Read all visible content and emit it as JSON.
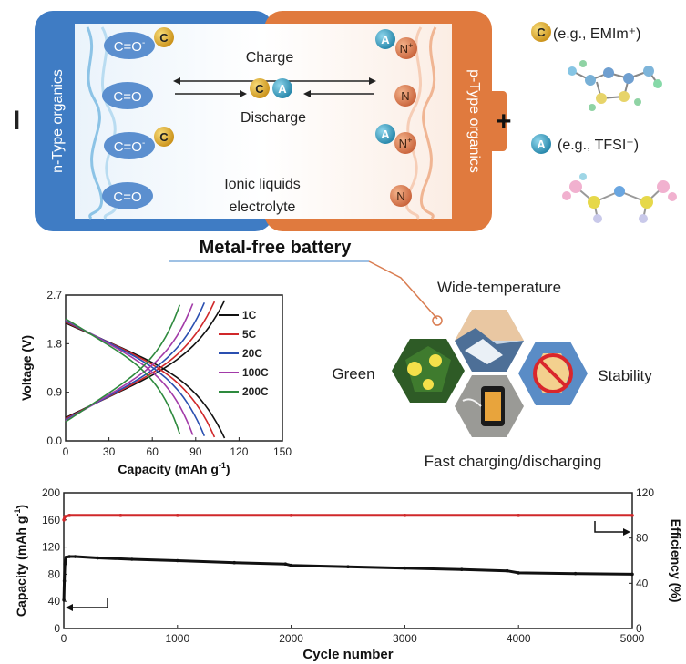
{
  "battery": {
    "minus_label": "I",
    "plus_label": "+",
    "anode_label": "n-Type organics",
    "cathode_label": "p-Type organics",
    "anode_groups": [
      "C=O",
      "C=O",
      "C=O",
      "C=O"
    ],
    "anode_superscripts": [
      "-",
      "",
      "-",
      ""
    ],
    "cathode_groups": [
      "N",
      "N",
      "N",
      "N"
    ],
    "cathode_superscripts": [
      "+",
      "",
      "+",
      ""
    ],
    "cation_symbol": "C",
    "anion_symbol": "A",
    "charge_label": "Charge",
    "discharge_label": "Discharge",
    "electrolyte_line1": "Ionic liquids",
    "electrolyte_line2": "electrolyte",
    "title": "Metal-free battery",
    "colors": {
      "anode": "#3f7cc4",
      "cathode": "#e07a3e",
      "cation": "#e0a92c",
      "anion": "#3ea7c9"
    }
  },
  "legend_ions": {
    "cation_example": "(e.g., EMIm⁺)",
    "anion_example": "(e.g., TFSI⁻)"
  },
  "features": {
    "top": "Wide-temperature",
    "left": "Green",
    "right": "Stability",
    "bottom": "Fast charging/discharging"
  },
  "chart_data": [
    {
      "type": "line",
      "xlabel": "Capacity (mAh g",
      "xlabel_sup": "-1",
      "ylabel": "Voltage (V)",
      "xlim": [
        0,
        150
      ],
      "ylim": [
        0,
        2.7
      ],
      "xticks": [
        0,
        30,
        60,
        90,
        120,
        150
      ],
      "yticks": [
        0.0,
        0.9,
        1.8,
        2.7
      ],
      "legend_position": "right",
      "series": [
        {
          "name": "1C",
          "color": "#111111",
          "cap": 110
        },
        {
          "name": "5C",
          "color": "#d0282a",
          "cap": 103
        },
        {
          "name": "20C",
          "color": "#2a4fb0",
          "cap": 96
        },
        {
          "name": "100C",
          "color": "#a23aa8",
          "cap": 88
        },
        {
          "name": "200C",
          "color": "#2e8a3e",
          "cap": 79
        }
      ]
    },
    {
      "type": "scatter",
      "xlabel": "Cycle number",
      "ylabel_left": "Capacity (mAh g",
      "ylabel_left_sup": "-1",
      "ylabel_right": "Efficiency (%)",
      "xlim": [
        0,
        5000
      ],
      "ylim_left": [
        0,
        200
      ],
      "ylim_right": [
        0,
        120
      ],
      "xticks": [
        0,
        1000,
        2000,
        3000,
        4000,
        5000
      ],
      "yticks_left": [
        0,
        40,
        80,
        120,
        160,
        200
      ],
      "yticks_right": [
        0,
        40,
        80,
        120
      ],
      "series": [
        {
          "name": "Capacity",
          "axis": "left",
          "color": "#111111",
          "x": [
            1,
            5,
            10,
            20,
            50,
            100,
            300,
            600,
            1000,
            1500,
            1950,
            2000,
            2500,
            3000,
            3500,
            3900,
            4000,
            4500,
            5000
          ],
          "y": [
            42,
            70,
            95,
            105,
            106,
            106,
            104,
            102,
            100,
            97,
            95,
            93,
            91,
            89,
            87,
            85,
            82,
            81,
            80
          ]
        },
        {
          "name": "Efficiency",
          "axis": "right",
          "color": "#d0282a",
          "x": [
            1,
            10,
            50,
            500,
            1000,
            2000,
            3000,
            4000,
            5000
          ],
          "y": [
            96,
            99,
            100,
            100,
            100,
            100,
            100,
            100,
            100
          ]
        }
      ]
    }
  ]
}
